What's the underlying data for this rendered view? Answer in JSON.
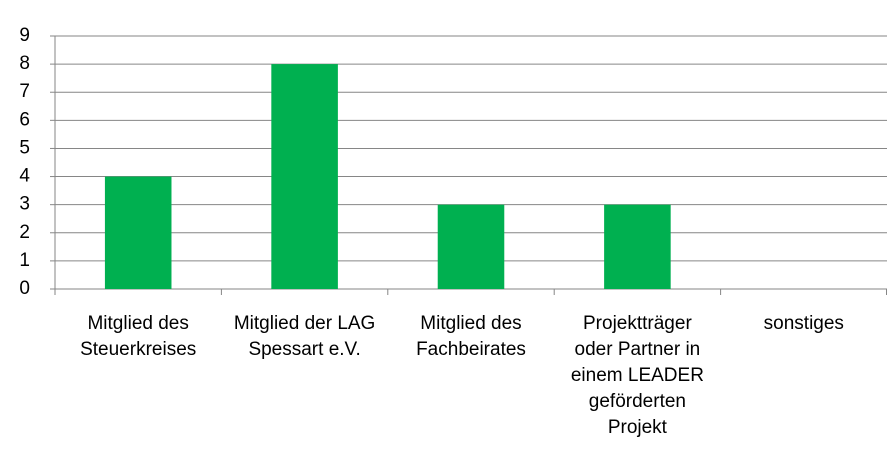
{
  "chart_data": {
    "type": "bar",
    "categories": [
      "Mitglied des Steuerkreises",
      "Mitglied der LAG Spessart e.V.",
      "Mitglied des Fachbeirates",
      "Projektträger oder Partner in einem LEADER geförderten Projekt",
      "sonstiges"
    ],
    "values": [
      4,
      8,
      3,
      3,
      0
    ],
    "color": "#00b050",
    "ylim": [
      0,
      9
    ],
    "yticks": [
      0,
      1,
      2,
      3,
      4,
      5,
      6,
      7,
      8,
      9
    ],
    "grid": true
  }
}
